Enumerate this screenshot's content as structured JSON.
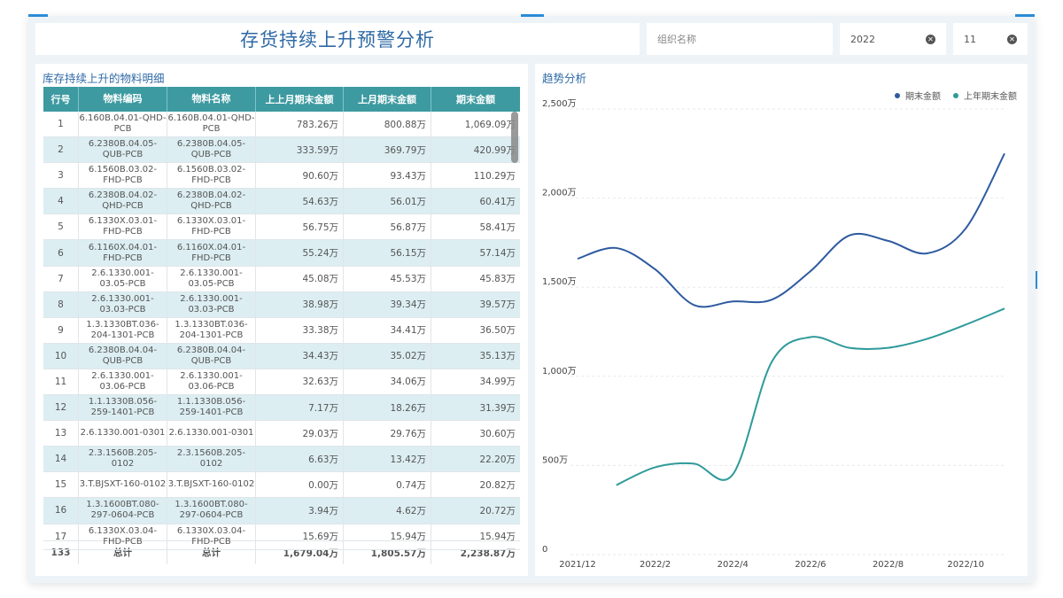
{
  "header": {
    "title": "存货持续上升预警分析"
  },
  "filters": {
    "org": {
      "placeholder": "组织名称"
    },
    "year": {
      "value": "2022"
    },
    "month": {
      "value": "11"
    }
  },
  "detail": {
    "title": "库存持续上升的物料明细",
    "columns": [
      "行号",
      "物料编码",
      "物料名称",
      "上上月期末金额",
      "上月期末金额",
      "期末金额"
    ],
    "rows": [
      {
        "no": "1",
        "code": "6.160B.04.01-QHD-PCB",
        "name": "6.160B.04.01-QHD-PCB",
        "m2": "783.26万",
        "m1": "800.88万",
        "m0": "1,069.09万"
      },
      {
        "no": "2",
        "code": "6.2380B.04.05-QUB-PCB",
        "name": "6.2380B.04.05-QUB-PCB",
        "m2": "333.59万",
        "m1": "369.79万",
        "m0": "420.99万"
      },
      {
        "no": "3",
        "code": "6.1560B.03.02-FHD-PCB",
        "name": "6.1560B.03.02-FHD-PCB",
        "m2": "90.60万",
        "m1": "93.43万",
        "m0": "110.29万"
      },
      {
        "no": "4",
        "code": "6.2380B.04.02-QHD-PCB",
        "name": "6.2380B.04.02-QHD-PCB",
        "m2": "54.63万",
        "m1": "56.01万",
        "m0": "60.41万"
      },
      {
        "no": "5",
        "code": "6.1330X.03.01-FHD-PCB",
        "name": "6.1330X.03.01-FHD-PCB",
        "m2": "56.75万",
        "m1": "56.87万",
        "m0": "58.41万"
      },
      {
        "no": "6",
        "code": "6.1160X.04.01-FHD-PCB",
        "name": "6.1160X.04.01-FHD-PCB",
        "m2": "55.24万",
        "m1": "56.15万",
        "m0": "57.14万"
      },
      {
        "no": "7",
        "code": "2.6.1330.001-03.05-PCB",
        "name": "2.6.1330.001-03.05-PCB",
        "m2": "45.08万",
        "m1": "45.53万",
        "m0": "45.83万"
      },
      {
        "no": "8",
        "code": "2.6.1330.001-03.03-PCB",
        "name": "2.6.1330.001-03.03-PCB",
        "m2": "38.98万",
        "m1": "39.34万",
        "m0": "39.57万"
      },
      {
        "no": "9",
        "code": "1.3.1330BT.036-204-1301-PCB",
        "name": "1.3.1330BT.036-204-1301-PCB",
        "m2": "33.38万",
        "m1": "34.41万",
        "m0": "36.50万"
      },
      {
        "no": "10",
        "code": "6.2380B.04.04-QUB-PCB",
        "name": "6.2380B.04.04-QUB-PCB",
        "m2": "34.43万",
        "m1": "35.02万",
        "m0": "35.13万"
      },
      {
        "no": "11",
        "code": "2.6.1330.001-03.06-PCB",
        "name": "2.6.1330.001-03.06-PCB",
        "m2": "32.63万",
        "m1": "34.06万",
        "m0": "34.99万"
      },
      {
        "no": "12",
        "code": "1.1.1330B.056-259-1401-PCB",
        "name": "1.1.1330B.056-259-1401-PCB",
        "m2": "7.17万",
        "m1": "18.26万",
        "m0": "31.39万"
      },
      {
        "no": "13",
        "code": "2.6.1330.001-0301",
        "name": "2.6.1330.001-0301",
        "m2": "29.03万",
        "m1": "29.76万",
        "m0": "30.60万"
      },
      {
        "no": "14",
        "code": "2.3.1560B.205-0102",
        "name": "2.3.1560B.205-0102",
        "m2": "6.63万",
        "m1": "13.42万",
        "m0": "22.20万"
      },
      {
        "no": "15",
        "code": "3.T.BJSXT-160-0102",
        "name": "3.T.BJSXT-160-0102",
        "m2": "0.00万",
        "m1": "0.74万",
        "m0": "20.82万"
      },
      {
        "no": "16",
        "code": "1.3.1600BT.080-297-0604-PCB",
        "name": "1.3.1600BT.080-297-0604-PCB",
        "m2": "3.94万",
        "m1": "4.62万",
        "m0": "20.72万"
      },
      {
        "no": "17",
        "code": "6.1330X.03.04-FHD-PCB",
        "name": "6.1330X.03.04-FHD-PCB",
        "m2": "15.69万",
        "m1": "15.94万",
        "m0": "15.94万"
      }
    ],
    "footer": {
      "count": "133",
      "code": "总计",
      "name": "总计",
      "m2": "1,679.04万",
      "m1": "1,805.57万",
      "m0": "2,238.87万"
    }
  },
  "trend": {
    "title": "趋势分析",
    "colors": {
      "current": "#2d5aa0",
      "lastYear": "#2f9a9a"
    },
    "chart_data": {
      "type": "line",
      "title": "趋势分析",
      "x": [
        "2021/12",
        "2022/1",
        "2022/2",
        "2022/3",
        "2022/4",
        "2022/5",
        "2022/6",
        "2022/7",
        "2022/8",
        "2022/9",
        "2022/10",
        "2022/11"
      ],
      "xtick_labels": [
        "2021/12",
        "2022/2",
        "2022/4",
        "2022/6",
        "2022/8",
        "2022/10"
      ],
      "ytick_labels": [
        "0",
        "500万",
        "1,000万",
        "1,500万",
        "2,000万",
        "2,500万"
      ],
      "ylim": [
        0,
        2500
      ],
      "yunit": "万",
      "series": [
        {
          "name": "期末金额",
          "values": [
            1660,
            1720,
            1600,
            1400,
            1420,
            1430,
            1590,
            1790,
            1760,
            1690,
            1830,
            2250
          ]
        },
        {
          "name": "上年期末金额",
          "values": [
            null,
            390,
            490,
            510,
            450,
            1080,
            1220,
            1160,
            1160,
            1210,
            1290,
            1380
          ]
        }
      ],
      "legend": [
        "期末金额",
        "上年期末金额"
      ],
      "legend_position": "top-right"
    }
  }
}
